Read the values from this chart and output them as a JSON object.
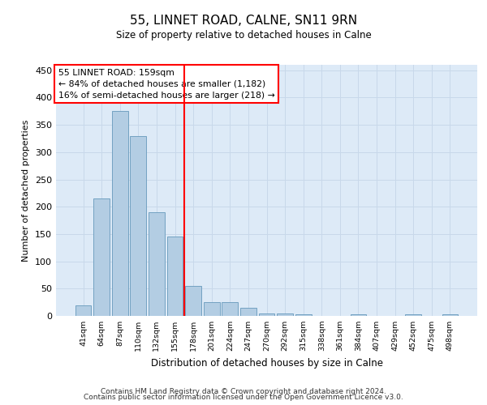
{
  "title": "55, LINNET ROAD, CALNE, SN11 9RN",
  "subtitle": "Size of property relative to detached houses in Calne",
  "xlabel": "Distribution of detached houses by size in Calne",
  "ylabel": "Number of detached properties",
  "bin_labels": [
    "41sqm",
    "64sqm",
    "87sqm",
    "110sqm",
    "132sqm",
    "155sqm",
    "178sqm",
    "201sqm",
    "224sqm",
    "247sqm",
    "270sqm",
    "292sqm",
    "315sqm",
    "338sqm",
    "361sqm",
    "384sqm",
    "407sqm",
    "429sqm",
    "452sqm",
    "475sqm",
    "498sqm"
  ],
  "bar_heights": [
    20,
    215,
    375,
    330,
    190,
    145,
    55,
    25,
    25,
    15,
    5,
    5,
    3,
    0,
    0,
    3,
    0,
    0,
    3,
    0,
    3
  ],
  "bar_color": "#b3cde3",
  "bar_edge_color": "#6699bb",
  "grid_color": "#c8d8ea",
  "background_color": "#ddeaf7",
  "red_line_bin_index": 5,
  "annotation_line1": "55 LINNET ROAD: 159sqm",
  "annotation_line2": "← 84% of detached houses are smaller (1,182)",
  "annotation_line3": "16% of semi-detached houses are larger (218) →",
  "footer_line1": "Contains HM Land Registry data © Crown copyright and database right 2024.",
  "footer_line2": "Contains public sector information licensed under the Open Government Licence v3.0.",
  "ylim_max": 460,
  "yticks": [
    0,
    50,
    100,
    150,
    200,
    250,
    300,
    350,
    400,
    450
  ]
}
